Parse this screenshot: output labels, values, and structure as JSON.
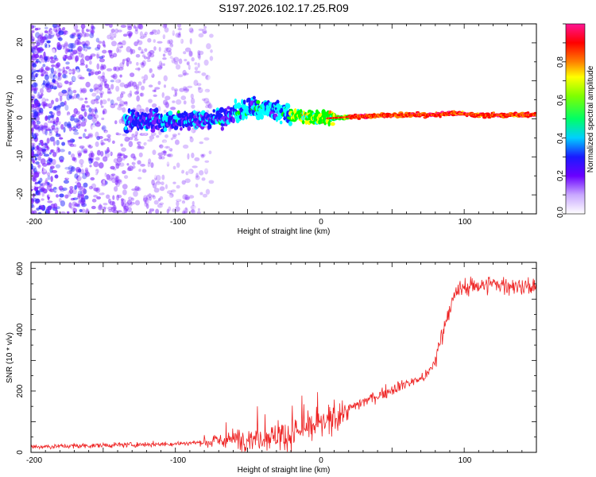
{
  "title": "S197.2026.102.17.25.R09",
  "chart_data": [
    {
      "type": "heatmap",
      "xlabel": "Height of straight line (km)",
      "ylabel": "Frequency (Hz)",
      "xlim": [
        -200,
        150
      ],
      "ylim": [
        -25,
        25
      ],
      "x_ticks": [
        -200,
        -100,
        0,
        100
      ],
      "y_ticks": [
        20,
        10,
        0,
        -10,
        -20
      ],
      "colorbar": {
        "label": "Normalized spectral amplitude",
        "range": [
          0.0,
          1.0
        ],
        "ticks": [
          "0.0",
          "0.2",
          "0.4",
          "0.6",
          "0.8"
        ],
        "colors": [
          "#ffffff",
          "#7b1fff",
          "#1a1aff",
          "#00ffff",
          "#00ff00",
          "#ffff00",
          "#ff7f00",
          "#ff0000",
          "#ff1493"
        ]
      },
      "ridge": {
        "description_values": "dominant frequency of the tone vs height",
        "x": [
          -130,
          -100,
          -80,
          -60,
          -45,
          -30,
          -20,
          -10,
          0,
          20,
          50,
          80,
          90,
          110,
          150
        ],
        "y": [
          -0.5,
          -0.5,
          0,
          1,
          3,
          2,
          1,
          0.5,
          0,
          0.5,
          1,
          1,
          1.5,
          1,
          1
        ]
      }
    },
    {
      "type": "line",
      "xlabel": "Height of straight line (km)",
      "ylabel": "SNR (10 * v/v)",
      "xlim": [
        -200,
        150
      ],
      "ylim": [
        0,
        620
      ],
      "x_ticks": [
        -200,
        -100,
        0,
        100
      ],
      "y_ticks": [
        0,
        200,
        400,
        600
      ],
      "color": "#ee2222",
      "series": [
        {
          "x": [
            -200,
            -180,
            -160,
            -140,
            -120,
            -100,
            -80,
            -60,
            -40,
            -20,
            -10,
            0,
            10,
            20,
            30,
            40,
            50,
            60,
            70,
            75,
            80,
            85,
            90,
            95,
            100,
            110,
            120,
            130,
            140,
            150
          ],
          "values": [
            18,
            20,
            22,
            24,
            26,
            28,
            33,
            42,
            50,
            58,
            75,
            90,
            110,
            140,
            165,
            185,
            205,
            225,
            240,
            255,
            300,
            390,
            470,
            520,
            540,
            545,
            550,
            545,
            540,
            535
          ]
        }
      ]
    }
  ]
}
